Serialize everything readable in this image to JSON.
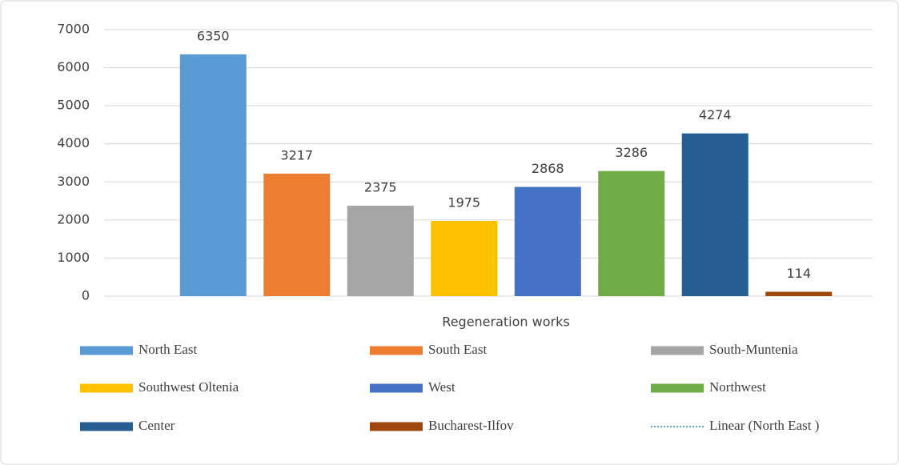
{
  "chart_data": {
    "type": "bar",
    "categories": [
      "Regeneration works"
    ],
    "series": [
      {
        "name": "North East",
        "color": "#5b9bd5",
        "values": [
          6350
        ]
      },
      {
        "name": "South East",
        "color": "#ed7d31",
        "values": [
          3217
        ]
      },
      {
        "name": "South-Muntenia",
        "color": "#a5a5a5",
        "values": [
          2375
        ]
      },
      {
        "name": "Southwest Oltenia",
        "color": "#ffc000",
        "values": [
          1975
        ]
      },
      {
        "name": "West",
        "color": "#4472c4",
        "values": [
          2868
        ]
      },
      {
        "name": "Northwest",
        "color": "#70ad47",
        "values": [
          3286
        ]
      },
      {
        "name": "Center",
        "color": "#255e91",
        "values": [
          4274
        ]
      },
      {
        "name": "Bucharest-Ilfov",
        "color": "#9e480e",
        "values": [
          114
        ]
      }
    ],
    "trendline": {
      "name": "Linear (North East )",
      "color": "#5b9bd5"
    },
    "ylim": [
      0,
      7000
    ],
    "yticks": [
      0,
      1000,
      2000,
      3000,
      4000,
      5000,
      6000,
      7000
    ],
    "grid": true
  }
}
